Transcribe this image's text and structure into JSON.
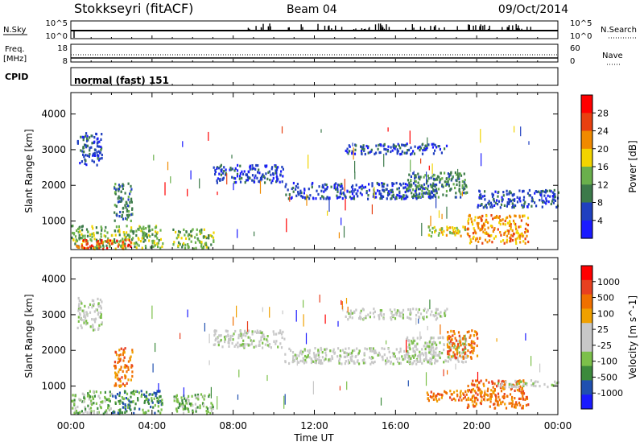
{
  "header": {
    "station": "Stokkseyri (fitACF)",
    "beam": "Beam 04",
    "date": "09/Oct/2014"
  },
  "top_panels": {
    "nsky_label": "N.Sky",
    "nsearch_label": "N.Search",
    "nsky_ticks": [
      "10^5",
      "10^0"
    ],
    "nsky_right_ticks": [
      "10^5",
      "10^0"
    ],
    "freq_label": "Freq.",
    "freq_unit": "[MHz]",
    "freq_ticks": [
      "18",
      "8"
    ],
    "nave_label": "Nave",
    "nave_ticks": [
      "60",
      "0"
    ],
    "cpid_label": "CPID",
    "cpid_value": "normal (fast) 151"
  },
  "colors": {
    "power": [
      "#1a1aff",
      "#2040c0",
      "#3c7a4a",
      "#6ab04c",
      "#f2d400",
      "#f08a00",
      "#e84010",
      "#ff0000"
    ],
    "velocity": [
      "#1a1aff",
      "#2050b0",
      "#3c8a3c",
      "#7cc04a",
      "#c8c8c8",
      "#c8c8c8",
      "#f0a000",
      "#f07000",
      "#e84020",
      "#ff0000"
    ]
  },
  "chart_data": [
    {
      "type": "heatmap",
      "name": "power-panel",
      "xlabel": "Time UT",
      "ylabel": "Slant Range [km]",
      "x_ticks": [
        "00:00",
        "04:00",
        "08:00",
        "12:00",
        "16:00",
        "20:00",
        "00:00"
      ],
      "y_ticks": [
        1000,
        2000,
        3000,
        4000
      ],
      "ylim": [
        200,
        4600
      ],
      "xlim_hours": [
        0,
        24
      ],
      "colorbar": {
        "label": "Power [dB]",
        "ticks": [
          "4",
          "8",
          "12",
          "16",
          "20",
          "24",
          "28"
        ]
      },
      "regions": [
        {
          "t0": 0.3,
          "t1": 1.5,
          "r0": 2600,
          "r1": 3500,
          "level": 1
        },
        {
          "t0": 2.1,
          "t1": 3.0,
          "r0": 1000,
          "r1": 2100,
          "level": 2
        },
        {
          "t0": 0.0,
          "t1": 4.5,
          "r0": 250,
          "r1": 900,
          "level": 3
        },
        {
          "t0": 0.2,
          "t1": 3.0,
          "r0": 250,
          "r1": 500,
          "level": 6
        },
        {
          "t0": 5.0,
          "t1": 7.0,
          "r0": 250,
          "r1": 800,
          "level": 3
        },
        {
          "t0": 7.0,
          "t1": 10.5,
          "r0": 2100,
          "r1": 2600,
          "level": 1
        },
        {
          "t0": 10.5,
          "t1": 18.0,
          "r0": 1650,
          "r1": 2100,
          "level": 1
        },
        {
          "t0": 13.5,
          "t1": 18.5,
          "r0": 2900,
          "r1": 3200,
          "level": 1
        },
        {
          "t0": 16.5,
          "t1": 19.5,
          "r0": 1700,
          "r1": 2400,
          "level": 2
        },
        {
          "t0": 17.5,
          "t1": 19.5,
          "r0": 600,
          "r1": 900,
          "level": 4
        },
        {
          "t0": 19.5,
          "t1": 22.5,
          "r0": 400,
          "r1": 1200,
          "level": 5
        },
        {
          "t0": 20.0,
          "t1": 24.0,
          "r0": 1400,
          "r1": 1900,
          "level": 1
        }
      ]
    },
    {
      "type": "heatmap",
      "name": "velocity-panel",
      "xlabel": "Time UT",
      "ylabel": "Slant Range [km]",
      "x_ticks": [
        "00:00",
        "04:00",
        "08:00",
        "12:00",
        "16:00",
        "20:00",
        "00:00"
      ],
      "y_ticks": [
        1000,
        2000,
        3000,
        4000
      ],
      "ylim": [
        200,
        4600
      ],
      "xlim_hours": [
        0,
        24
      ],
      "colorbar": {
        "label": "Velocity [m s^-1]",
        "ticks": [
          "1000",
          "500",
          "100",
          "25",
          "-25",
          "-100",
          "-500",
          "-1000"
        ]
      },
      "regions": [
        {
          "t0": 0.3,
          "t1": 1.5,
          "r0": 2600,
          "r1": 3500,
          "level": 4
        },
        {
          "t0": 2.1,
          "t1": 3.0,
          "r0": 1000,
          "r1": 2100,
          "level": 7
        },
        {
          "t0": 0.0,
          "t1": 2.0,
          "r0": 250,
          "r1": 900,
          "level": 3
        },
        {
          "t0": 2.0,
          "t1": 4.5,
          "r0": 250,
          "r1": 900,
          "level": 2
        },
        {
          "t0": 5.0,
          "t1": 7.0,
          "r0": 250,
          "r1": 800,
          "level": 3
        },
        {
          "t0": 7.0,
          "t1": 10.5,
          "r0": 2100,
          "r1": 2600,
          "level": 4
        },
        {
          "t0": 10.5,
          "t1": 18.0,
          "r0": 1650,
          "r1": 2100,
          "level": 4
        },
        {
          "t0": 13.5,
          "t1": 18.5,
          "r0": 2900,
          "r1": 3200,
          "level": 4
        },
        {
          "t0": 16.5,
          "t1": 19.5,
          "r0": 1700,
          "r1": 2400,
          "level": 4
        },
        {
          "t0": 18.5,
          "t1": 20.0,
          "r0": 1800,
          "r1": 2600,
          "level": 7
        },
        {
          "t0": 17.5,
          "t1": 20.0,
          "r0": 600,
          "r1": 900,
          "level": 7
        },
        {
          "t0": 19.5,
          "t1": 22.5,
          "r0": 400,
          "r1": 1200,
          "level": 7
        },
        {
          "t0": 21.0,
          "t1": 24.0,
          "r0": 1000,
          "r1": 1200,
          "level": 4
        }
      ]
    }
  ]
}
